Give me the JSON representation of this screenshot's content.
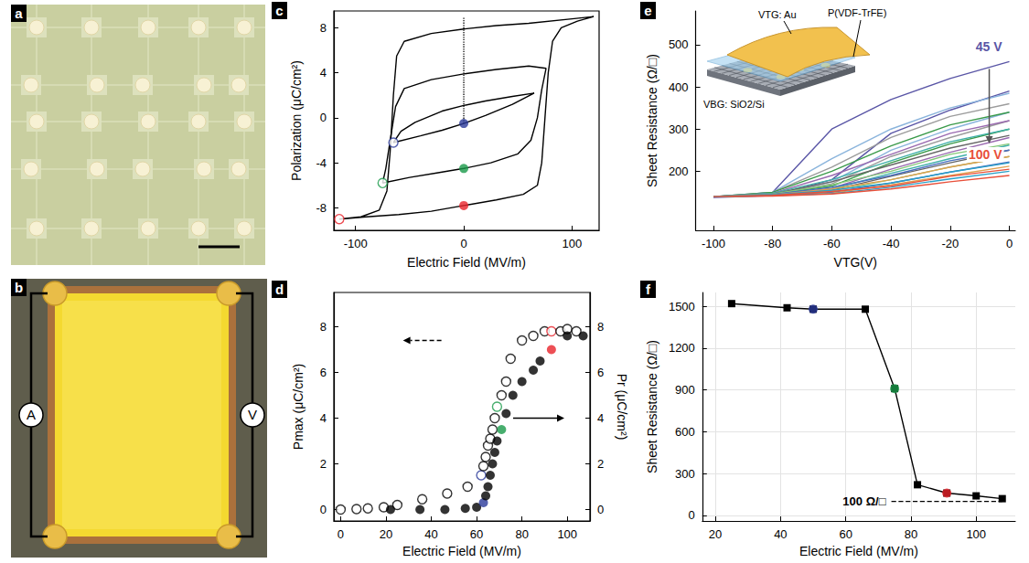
{
  "images": [
    {
      "panel": "a"
    },
    {
      "panel": "b",
      "meters": [
        "A",
        "V"
      ]
    }
  ],
  "chart_data": [
    {
      "panel": "c",
      "type": "line",
      "x_label": "Electric Field (MV/m)",
      "y_label": "Polarization (μC/cm²)",
      "xlim": [
        -120,
        125
      ],
      "xticks": [
        -100,
        0,
        100
      ],
      "ylim": [
        -10,
        9.5
      ],
      "yticks": [
        -8,
        -4,
        0,
        4,
        8
      ],
      "grid": false,
      "series": [
        {
          "type": "line",
          "color": "#000000",
          "x": [
            -115,
            -90,
            -60,
            -30,
            0,
            30,
            55,
            68,
            72,
            75,
            78,
            82,
            90,
            105,
            120,
            100,
            60,
            30,
            0,
            -30,
            -55,
            -62,
            -65,
            -68,
            -71,
            -78,
            -95,
            -115
          ],
          "values": [
            -9,
            -8.8,
            -8.6,
            -8.3,
            -7.8,
            -7.3,
            -6.8,
            -6,
            -4,
            0,
            4,
            6.8,
            8,
            8.6,
            9,
            8.8,
            8.4,
            8.2,
            7.9,
            7.5,
            6.8,
            5.5,
            2,
            -3,
            -6.5,
            -8.2,
            -8.8,
            -9
          ]
        },
        {
          "type": "line",
          "color": "#000000",
          "x": [
            -75,
            -50,
            -25,
            0,
            25,
            50,
            62,
            68,
            72,
            76,
            60,
            30,
            0,
            -30,
            -55,
            -63,
            -68,
            -72,
            -75
          ],
          "values": [
            -5.8,
            -5.3,
            -4.9,
            -4.5,
            -4,
            -3.2,
            -2,
            0,
            2.5,
            4.4,
            4.6,
            4.3,
            3.9,
            3.4,
            2.6,
            1,
            -2,
            -4.5,
            -5.8
          ]
        },
        {
          "type": "line",
          "color": "#000000",
          "x": [
            -65,
            -40,
            -20,
            0,
            20,
            45,
            65,
            45,
            20,
            0,
            -20,
            -45,
            -58,
            -65
          ],
          "values": [
            -2.2,
            -1.6,
            -1.1,
            -0.5,
            0.2,
            1.2,
            2.2,
            1.9,
            1.5,
            1.1,
            0.6,
            -0.4,
            -1.2,
            -2.2
          ]
        },
        {
          "type": "scatter",
          "marker": "open",
          "x": [
            -65,
            -75,
            -115
          ],
          "values": [
            -2.2,
            -5.8,
            -9
          ],
          "colors": [
            "#2b3a9a",
            "#1a9a4a",
            "#e8232a"
          ]
        },
        {
          "type": "scatter",
          "marker": "filled",
          "x": [
            0,
            0,
            0
          ],
          "values": [
            -0.5,
            -4.5,
            -7.8
          ],
          "colors": [
            "#2b3a9a",
            "#1a9a4a",
            "#e8232a"
          ]
        }
      ],
      "reference_line": {
        "x": 0,
        "y": [
          -0.5,
          9
        ],
        "line_style": "dotted"
      }
    },
    {
      "panel": "d",
      "type": "scatter",
      "x_label": "Electric Field (MV/m)",
      "y_label": "Pmax (μC/cm²)",
      "y2_label": "Pr (μC/cm²)",
      "xlim": [
        -3,
        110
      ],
      "xticks": [
        0,
        20,
        40,
        60,
        80,
        100
      ],
      "ylim": [
        -0.5,
        9.5
      ],
      "yticks": [
        0,
        2,
        4,
        6,
        8
      ],
      "y2lim": [
        -0.5,
        9.5
      ],
      "y2ticks": [
        0,
        2,
        4,
        6,
        8
      ],
      "grid": false,
      "series": [
        {
          "marker": "open",
          "x": [
            0,
            7,
            12,
            19,
            25,
            36,
            47,
            56,
            62,
            63,
            64,
            65,
            66,
            67,
            68,
            69,
            71,
            73,
            75,
            80,
            85,
            90,
            93,
            97,
            100,
            104
          ],
          "values": [
            0,
            0.02,
            0.05,
            0.1,
            0.2,
            0.45,
            0.7,
            1.0,
            1.5,
            1.9,
            2.3,
            2.8,
            3.1,
            3.5,
            4.0,
            4.5,
            5.0,
            5.6,
            6.6,
            7.4,
            7.6,
            7.8,
            7.8,
            7.8,
            7.9,
            7.8
          ],
          "colors": [
            "#000000",
            "#000000",
            "#000000",
            "#000000",
            "#000000",
            "#000000",
            "#000000",
            "#000000",
            "#2b3a9a",
            "#000000",
            "#000000",
            "#000000",
            "#000000",
            "#000000",
            "#000000",
            "#1a9a4a",
            "#000000",
            "#000000",
            "#000000",
            "#000000",
            "#000000",
            "#000000",
            "#e8232a",
            "#000000",
            "#000000",
            "#000000"
          ]
        },
        {
          "marker": "filled",
          "axis": "y2",
          "x": [
            22,
            35,
            46,
            55,
            60,
            63,
            64,
            65,
            66,
            67,
            68,
            69,
            71,
            73,
            76,
            80,
            85,
            88,
            93,
            100,
            107
          ],
          "values": [
            0,
            0,
            0,
            0.05,
            0.1,
            0.3,
            0.6,
            1.0,
            1.5,
            2.0,
            2.5,
            3.0,
            3.5,
            4.2,
            5.0,
            5.6,
            6.1,
            6.5,
            7.0,
            7.6,
            7.6
          ],
          "colors": [
            "#000000",
            "#000000",
            "#000000",
            "#000000",
            "#000000",
            "#2b3a9a",
            "#000000",
            "#000000",
            "#000000",
            "#000000",
            "#000000",
            "#000000",
            "#1a9a4a",
            "#000000",
            "#000000",
            "#000000",
            "#000000",
            "#000000",
            "#e8232a",
            "#000000",
            "#000000"
          ]
        }
      ]
    },
    {
      "panel": "e",
      "type": "line",
      "x_label": "VTG(V)",
      "y_label": "Sheet Resistance (Ω/□)",
      "xlim": [
        -106,
        2
      ],
      "xticks": [
        -100,
        -80,
        -60,
        -40,
        -20,
        0
      ],
      "ylim": [
        60,
        580
      ],
      "yticks": [
        200,
        300,
        400,
        500
      ],
      "grid": false,
      "series": [
        {
          "name": "45 V",
          "color": "#5a56a6",
          "x": [
            0,
            -20,
            -40,
            -60,
            -80,
            -100,
            -80,
            -60,
            -40,
            -20,
            0
          ],
          "values": [
            460,
            420,
            370,
            300,
            150,
            138,
            142,
            180,
            290,
            345,
            390
          ]
        },
        {
          "color": "#8ab4dc",
          "x": [
            0,
            -20,
            -40,
            -60,
            -80,
            -100,
            -80,
            -60,
            -40,
            -20,
            0
          ],
          "values": [
            385,
            350,
            300,
            230,
            150,
            140,
            145,
            175,
            250,
            300,
            340
          ]
        },
        {
          "color": "#9c9c9c",
          "x": [
            0,
            -20,
            -40,
            -60,
            -80,
            -100,
            -80,
            -60,
            -40,
            -20,
            0
          ],
          "values": [
            360,
            330,
            280,
            210,
            150,
            140,
            145,
            170,
            235,
            280,
            320
          ]
        },
        {
          "color": "#3a9a4a",
          "x": [
            0,
            -20,
            -40,
            -60,
            -80,
            -100,
            -80,
            -60,
            -40,
            -20,
            0
          ],
          "values": [
            340,
            310,
            260,
            200,
            150,
            140,
            145,
            165,
            220,
            265,
            300
          ]
        },
        {
          "color": "#9a6ab0",
          "x": [
            0,
            -20,
            -40,
            -60,
            -80,
            -100,
            -80,
            -60,
            -40,
            -20,
            0
          ],
          "values": [
            320,
            290,
            240,
            190,
            148,
            140,
            144,
            160,
            205,
            245,
            280
          ]
        },
        {
          "color": "#40b0a8",
          "x": [
            0,
            -20,
            -40,
            -60,
            -80,
            -100,
            -80,
            -60,
            -40,
            -20,
            0
          ],
          "values": [
            300,
            270,
            225,
            180,
            148,
            140,
            143,
            158,
            195,
            230,
            262
          ]
        },
        {
          "color": "#666666",
          "x": [
            0,
            -20,
            -40,
            -60,
            -80,
            -100,
            -80,
            -60,
            -40,
            -20,
            0
          ],
          "values": [
            285,
            255,
            215,
            175,
            146,
            140,
            143,
            155,
            188,
            220,
            250
          ]
        },
        {
          "color": "#84c878",
          "x": [
            0,
            -20,
            -40,
            -60,
            -80,
            -100,
            -80,
            -60,
            -40,
            -20,
            0
          ],
          "values": [
            265,
            240,
            200,
            168,
            146,
            140,
            143,
            153,
            180,
            210,
            235
          ]
        },
        {
          "color": "#4a70c0",
          "x": [
            0,
            -20,
            -40,
            -60,
            -80,
            -100,
            -80,
            -60,
            -40,
            -20,
            0
          ],
          "values": [
            250,
            225,
            190,
            162,
            145,
            140,
            142,
            150,
            172,
            198,
            222
          ]
        },
        {
          "color": "#e0a050",
          "x": [
            0,
            -20,
            -40,
            -60,
            -80,
            -100,
            -80,
            -60,
            -40,
            -20,
            0
          ],
          "values": [
            235,
            210,
            180,
            158,
            144,
            140,
            142,
            148,
            168,
            190,
            212
          ]
        },
        {
          "color": "#2aa0c8",
          "x": [
            0,
            -20,
            -40,
            -60,
            -80,
            -100,
            -80,
            -60,
            -40,
            -20,
            0
          ],
          "values": [
            220,
            198,
            172,
            155,
            144,
            140,
            142,
            147,
            162,
            182,
            200
          ]
        },
        {
          "name": "100 V",
          "color": "#e8503a",
          "x": [
            0,
            -20,
            -40,
            -60,
            -80,
            -100,
            -80,
            -60,
            -40,
            -20,
            0
          ],
          "values": [
            205,
            188,
            165,
            152,
            143,
            140,
            141,
            146,
            158,
            175,
            190
          ]
        }
      ],
      "inset": {
        "top_gate": "VTG: Au",
        "dielectric": "P(VDF-TrFE)",
        "back_gate": "VBG: SiO2/Si"
      }
    },
    {
      "panel": "f",
      "type": "line",
      "x_label": "Electric Field (MV/m)",
      "y_label": "Sheet Resistance (Ω/□)",
      "xlim": [
        16,
        112
      ],
      "xticks": [
        20,
        40,
        60,
        80,
        100
      ],
      "ylim": [
        -40,
        1600
      ],
      "yticks": [
        0,
        300,
        600,
        900,
        1200,
        1500
      ],
      "grid": true,
      "series": [
        {
          "type": "line",
          "marker": "square",
          "color": "#000000",
          "x": [
            25,
            42,
            50,
            66,
            75,
            82,
            91,
            100,
            108
          ],
          "values": [
            1520,
            1490,
            1480,
            1480,
            910,
            220,
            160,
            140,
            120
          ]
        },
        {
          "type": "scatter",
          "marker": "circle",
          "x": [
            50,
            75,
            91
          ],
          "values": [
            1480,
            910,
            160
          ],
          "colors": [
            "#2b3a9a",
            "#1a9a4a",
            "#e8232a"
          ]
        }
      ],
      "reference_line": {
        "y": 100,
        "x": [
          74,
          108
        ],
        "label": "100 Ω/□",
        "line_style": "dashed"
      }
    }
  ]
}
